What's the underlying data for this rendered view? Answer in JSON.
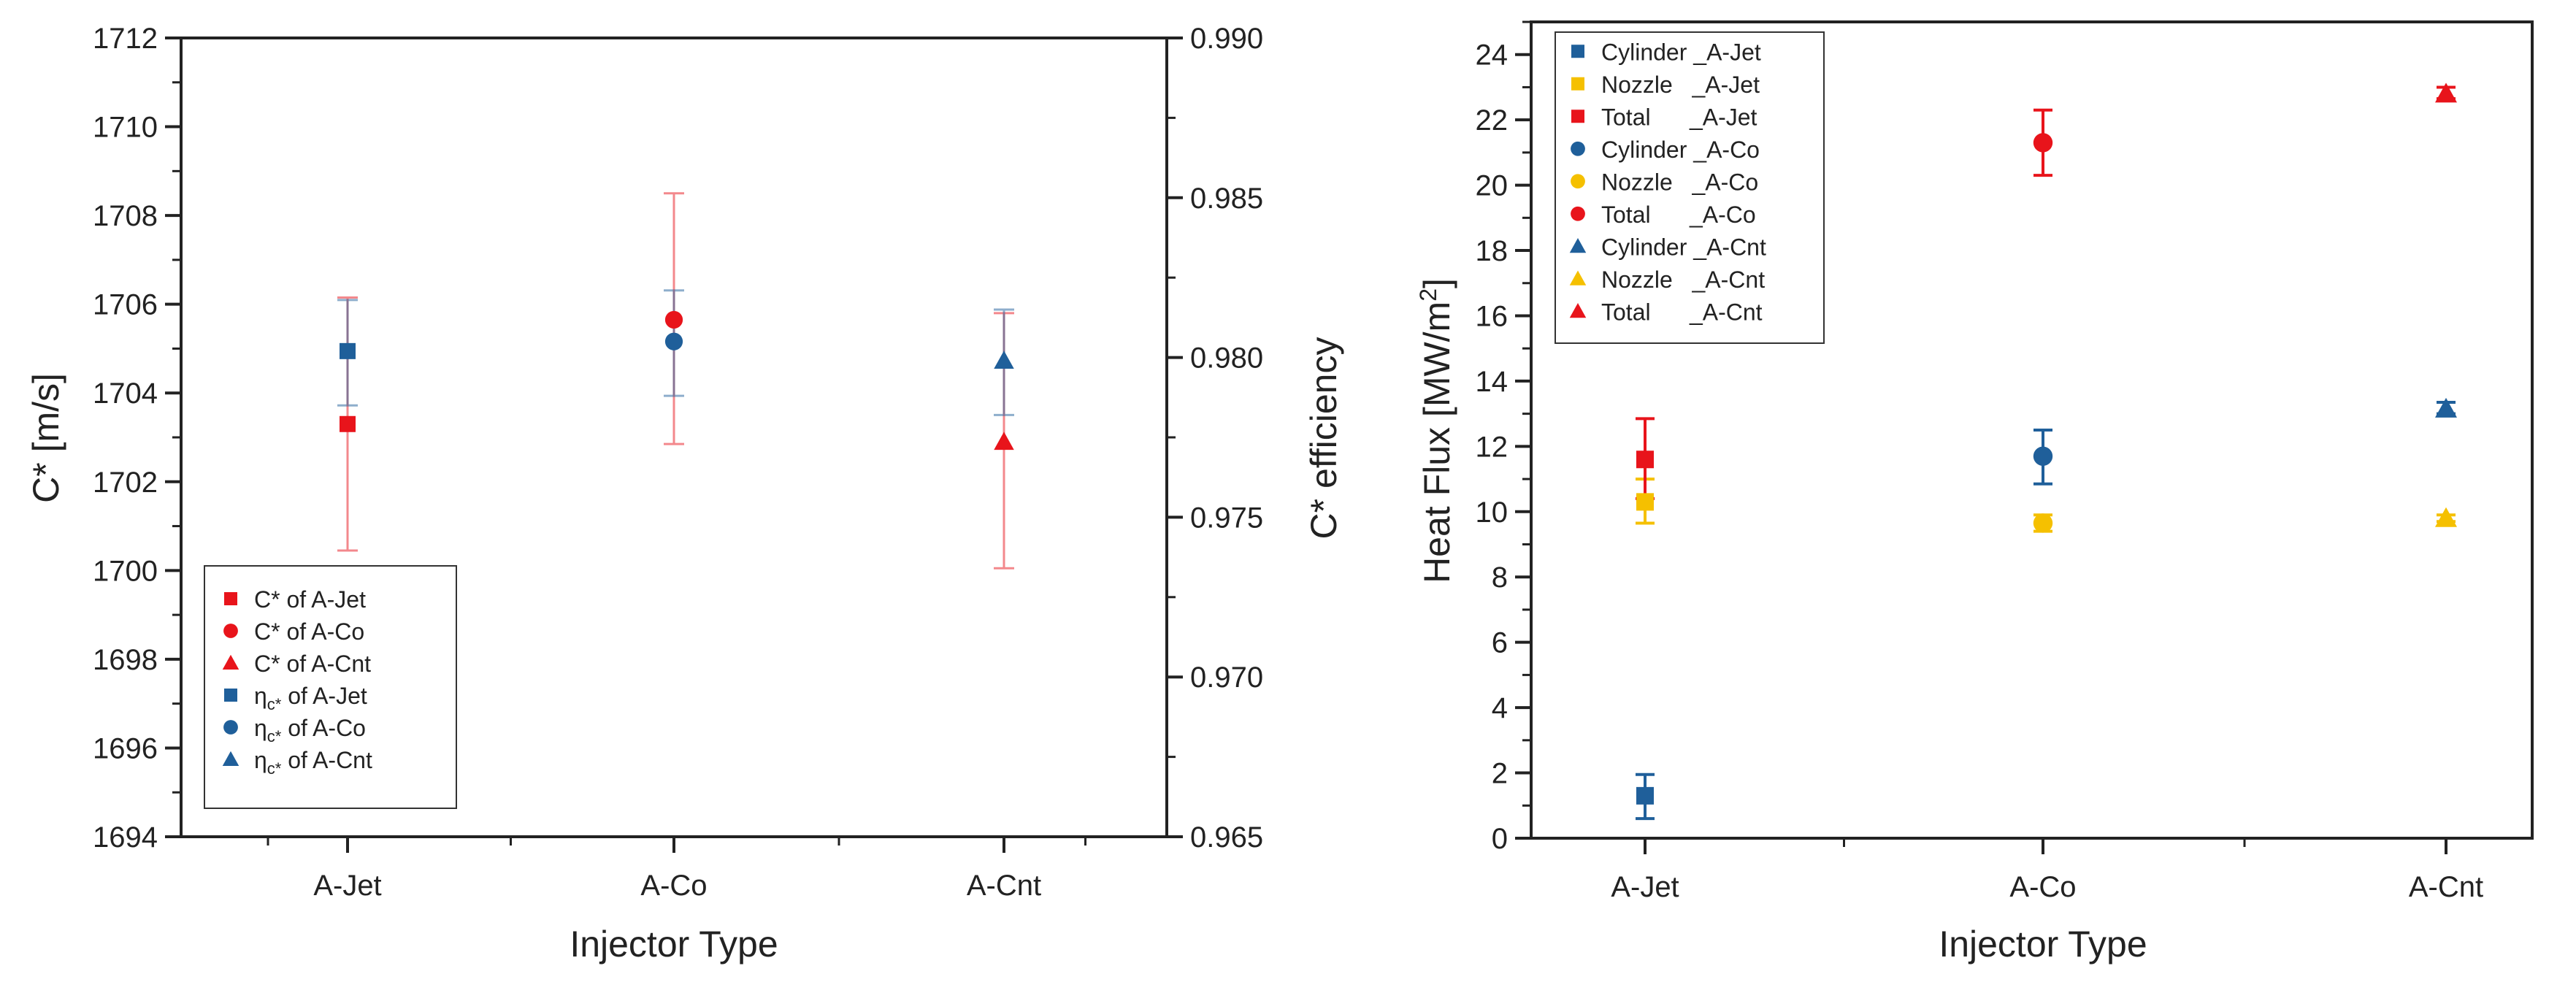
{
  "chart_data": [
    {
      "type": "scatter",
      "xlabel": "Injector Type",
      "ylabel": "C* [m/s]",
      "y2label": "C* efficiency",
      "categories": [
        "A-Jet",
        "A-Co",
        "A-Cnt"
      ],
      "ylim": [
        1694,
        1712
      ],
      "yticks": [
        1694,
        1696,
        1698,
        1700,
        1702,
        1704,
        1706,
        1708,
        1710,
        1712
      ],
      "y2lim": [
        0.965,
        0.99
      ],
      "y2ticks": [
        "0.965",
        "0.970",
        "0.975",
        "0.980",
        "0.985",
        "0.990"
      ],
      "legend_position": "bottom-left",
      "series": [
        {
          "name": "C* of A-Jet",
          "name_sub": "",
          "name_rest": "",
          "color": "#e8141b",
          "marker": "square",
          "axis": "left",
          "cat": 0,
          "value": 1703.3,
          "err_lo": 1700.45,
          "err_hi": 1706.15
        },
        {
          "name": "C* of A-Co",
          "name_sub": "",
          "name_rest": "",
          "color": "#e8141b",
          "marker": "circle",
          "axis": "left",
          "cat": 1,
          "value": 1705.65,
          "err_lo": 1702.85,
          "err_hi": 1708.5
        },
        {
          "name": "C* of A-Cnt",
          "name_sub": "",
          "name_rest": "",
          "color": "#e8141b",
          "marker": "triangle",
          "axis": "left",
          "cat": 2,
          "value": 1702.9,
          "err_lo": 1700.05,
          "err_hi": 1705.8
        },
        {
          "name": "η",
          "name_sub": "c*",
          "name_rest": " of A-Jet",
          "color": "#1f5f9a",
          "marker": "square",
          "axis": "right",
          "cat": 0,
          "value": 0.9802,
          "err_lo": 0.9785,
          "err_hi": 0.9818
        },
        {
          "name": "η",
          "name_sub": "c*",
          "name_rest": " of A-Co",
          "color": "#1f5f9a",
          "marker": "circle",
          "axis": "right",
          "cat": 1,
          "value": 0.9805,
          "err_lo": 0.9788,
          "err_hi": 0.9821
        },
        {
          "name": "η",
          "name_sub": "c*",
          "name_rest": " of A-Cnt",
          "color": "#1f5f9a",
          "marker": "triangle",
          "axis": "right",
          "cat": 2,
          "value": 0.9799,
          "err_lo": 0.9782,
          "err_hi": 0.9815
        }
      ]
    },
    {
      "type": "scatter",
      "xlabel": "Injector Type",
      "ylabel": "Heat Flux [MW/m",
      "ylabel_sup": "2",
      "ylabel_end": "]",
      "categories": [
        "A-Jet",
        "A-Co",
        "A-Cnt"
      ],
      "ylim": [
        0,
        25
      ],
      "yticks": [
        0,
        2,
        4,
        6,
        8,
        10,
        12,
        14,
        16,
        18,
        20,
        22,
        24
      ],
      "legend_position": "top-left",
      "series": [
        {
          "name": "Cylinder _A-Jet",
          "color": "#1f5f9a",
          "marker": "square",
          "cat": 0,
          "value": 1.3,
          "err_lo": 0.6,
          "err_hi": 1.95
        },
        {
          "name": "Nozzle   _A-Jet",
          "color": "#f5c000",
          "marker": "square",
          "cat": 0,
          "value": 10.3,
          "err_lo": 9.65,
          "err_hi": 11.0
        },
        {
          "name": "Total      _A-Jet",
          "color": "#e8141b",
          "marker": "square",
          "cat": 0,
          "value": 11.6,
          "err_lo": 10.4,
          "err_hi": 12.85
        },
        {
          "name": "Cylinder _A-Co",
          "color": "#1f5f9a",
          "marker": "circle",
          "cat": 1,
          "value": 11.7,
          "err_lo": 10.85,
          "err_hi": 12.5
        },
        {
          "name": "Nozzle   _A-Co",
          "color": "#f5c000",
          "marker": "circle",
          "cat": 1,
          "value": 9.65,
          "err_lo": 9.4,
          "err_hi": 9.9
        },
        {
          "name": "Total      _A-Co",
          "color": "#e8141b",
          "marker": "circle",
          "cat": 1,
          "value": 21.3,
          "err_lo": 20.3,
          "err_hi": 22.3
        },
        {
          "name": "Cylinder _A-Cnt",
          "color": "#1f5f9a",
          "marker": "triangle",
          "cat": 2,
          "value": 13.15,
          "err_lo": 13.0,
          "err_hi": 13.35
        },
        {
          "name": "Nozzle   _A-Cnt",
          "color": "#f5c000",
          "marker": "triangle",
          "cat": 2,
          "value": 9.8,
          "err_lo": 9.7,
          "err_hi": 9.9
        },
        {
          "name": "Total      _A-Cnt",
          "color": "#e8141b",
          "marker": "triangle",
          "cat": 2,
          "value": 22.8,
          "err_lo": 22.65,
          "err_hi": 23.0
        }
      ]
    }
  ]
}
